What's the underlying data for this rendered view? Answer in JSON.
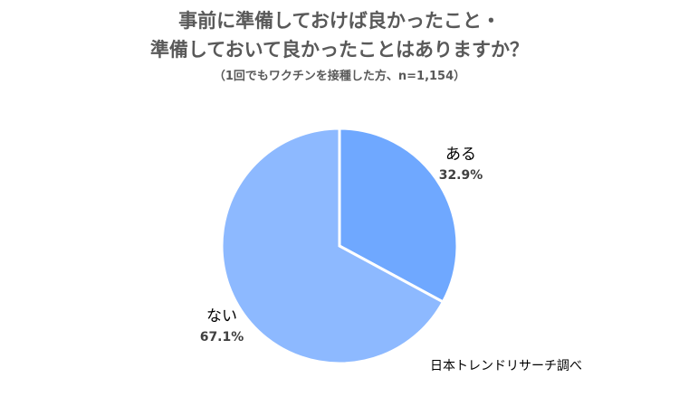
{
  "chart_data": {
    "type": "pie",
    "title": "事前に準備しておけば良かったこと・",
    "title_line2": "準備しておいて良かったことはありますか？",
    "subtitle": "（1回でもワクチンを接種した方、n=1,154）",
    "slices": [
      {
        "label": "ある",
        "value": 32.9,
        "display": "32.9%",
        "color": "#6FA8FF"
      },
      {
        "label": "ない",
        "value": 67.1,
        "display": "67.1%",
        "color": "#8DB9FF"
      }
    ],
    "legend": "none",
    "source": "日本トレンドリサーチ調べ"
  }
}
